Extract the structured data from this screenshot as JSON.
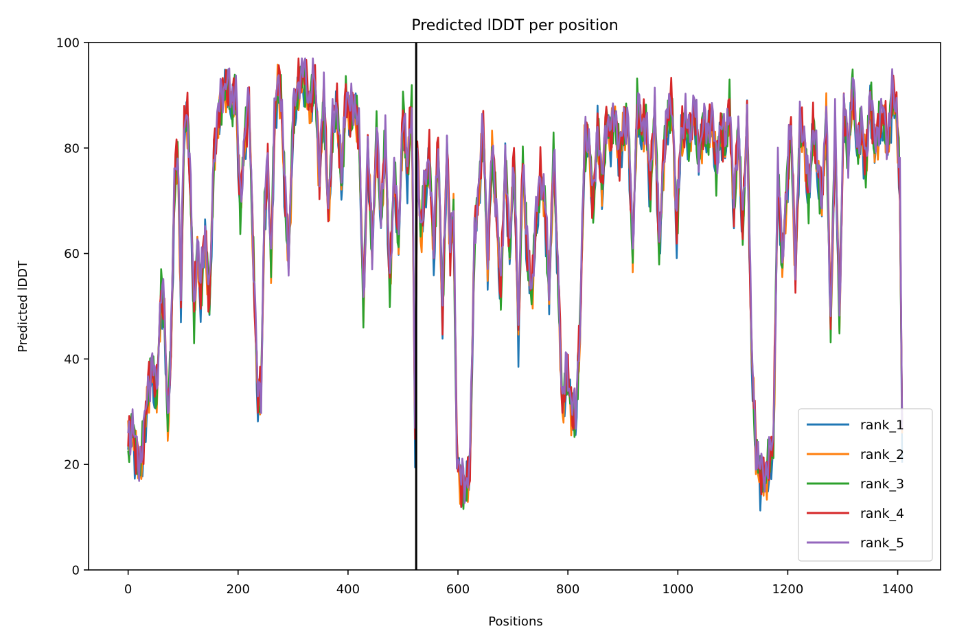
{
  "chart_data": {
    "type": "line",
    "title": "Predicted lDDT per position",
    "xlabel": "Positions",
    "ylabel": "Predicted lDDT",
    "xlim": [
      -72,
      1478
    ],
    "ylim": [
      0,
      100
    ],
    "xticks": [
      0,
      200,
      400,
      600,
      800,
      1000,
      1200,
      1400
    ],
    "yticks": [
      0,
      20,
      40,
      60,
      80,
      100
    ],
    "grid": false,
    "legend_position": "lower right",
    "vline_x": 524,
    "series": [
      {
        "name": "rank_1",
        "color": "#1f77b4"
      },
      {
        "name": "rank_2",
        "color": "#ff7f0e"
      },
      {
        "name": "rank_3",
        "color": "#2ca02c"
      },
      {
        "name": "rank_4",
        "color": "#d62728"
      },
      {
        "name": "rank_5",
        "color": "#9467bd"
      }
    ],
    "base_profile": {
      "x": [
        0,
        8,
        14,
        20,
        28,
        36,
        44,
        52,
        60,
        66,
        72,
        78,
        84,
        90,
        96,
        102,
        108,
        114,
        120,
        126,
        132,
        140,
        148,
        156,
        164,
        172,
        180,
        188,
        196,
        204,
        212,
        220,
        228,
        236,
        242,
        248,
        254,
        260,
        266,
        272,
        278,
        286,
        292,
        300,
        310,
        320,
        330,
        340,
        348,
        356,
        364,
        372,
        380,
        388,
        396,
        404,
        412,
        420,
        428,
        436,
        444,
        452,
        460,
        468,
        476,
        484,
        492,
        500,
        508,
        516,
        522,
        526,
        532,
        540,
        548,
        556,
        564,
        572,
        580,
        586,
        592,
        598,
        606,
        614,
        622,
        630,
        638,
        646,
        654,
        662,
        670,
        678,
        686,
        694,
        702,
        710,
        718,
        726,
        734,
        742,
        750,
        758,
        766,
        774,
        782,
        790,
        798,
        806,
        814,
        822,
        830,
        838,
        846,
        854,
        862,
        870,
        878,
        886,
        894,
        902,
        910,
        918,
        926,
        934,
        942,
        950,
        958,
        966,
        974,
        982,
        990,
        998,
        1006,
        1014,
        1022,
        1030,
        1038,
        1046,
        1054,
        1062,
        1070,
        1078,
        1086,
        1094,
        1102,
        1110,
        1118,
        1126,
        1134,
        1142,
        1150,
        1158,
        1166,
        1174,
        1182,
        1190,
        1198,
        1206,
        1214,
        1222,
        1230,
        1238,
        1246,
        1254,
        1262,
        1270,
        1278,
        1286,
        1294,
        1302,
        1310,
        1318,
        1326,
        1334,
        1342,
        1350,
        1358,
        1366,
        1374,
        1382,
        1390,
        1398,
        1404,
        1408
      ],
      "y": [
        24,
        27,
        22,
        19,
        24,
        34,
        38,
        33,
        53,
        48,
        28,
        42,
        72,
        80,
        52,
        84,
        86,
        70,
        48,
        62,
        52,
        64,
        50,
        78,
        86,
        90,
        92,
        88,
        91,
        68,
        82,
        88,
        58,
        32,
        34,
        68,
        76,
        58,
        84,
        92,
        90,
        70,
        58,
        85,
        92,
        94,
        88,
        93,
        74,
        90,
        67,
        84,
        88,
        73,
        90,
        86,
        88,
        83,
        50,
        80,
        60,
        83,
        66,
        82,
        53,
        76,
        62,
        87,
        75,
        89,
        26,
        78,
        64,
        72,
        78,
        60,
        81,
        48,
        80,
        60,
        68,
        22,
        16,
        15,
        20,
        63,
        72,
        84,
        58,
        80,
        68,
        52,
        78,
        60,
        78,
        45,
        78,
        60,
        52,
        66,
        74,
        70,
        52,
        79,
        56,
        30,
        38,
        31,
        28,
        46,
        80,
        82,
        68,
        84,
        72,
        85,
        82,
        86,
        78,
        84,
        84,
        60,
        88,
        83,
        85,
        72,
        88,
        60,
        78,
        86,
        88,
        64,
        83,
        84,
        82,
        88,
        78,
        84,
        82,
        86,
        76,
        84,
        80,
        88,
        68,
        84,
        64,
        86,
        42,
        22,
        18,
        17,
        20,
        24,
        76,
        58,
        72,
        84,
        56,
        84,
        82,
        70,
        84,
        76,
        70,
        86,
        46,
        84,
        48,
        88,
        78,
        92,
        80,
        84,
        76,
        90,
        80,
        84,
        86,
        80,
        90,
        87,
        72,
        26
      ]
    }
  }
}
